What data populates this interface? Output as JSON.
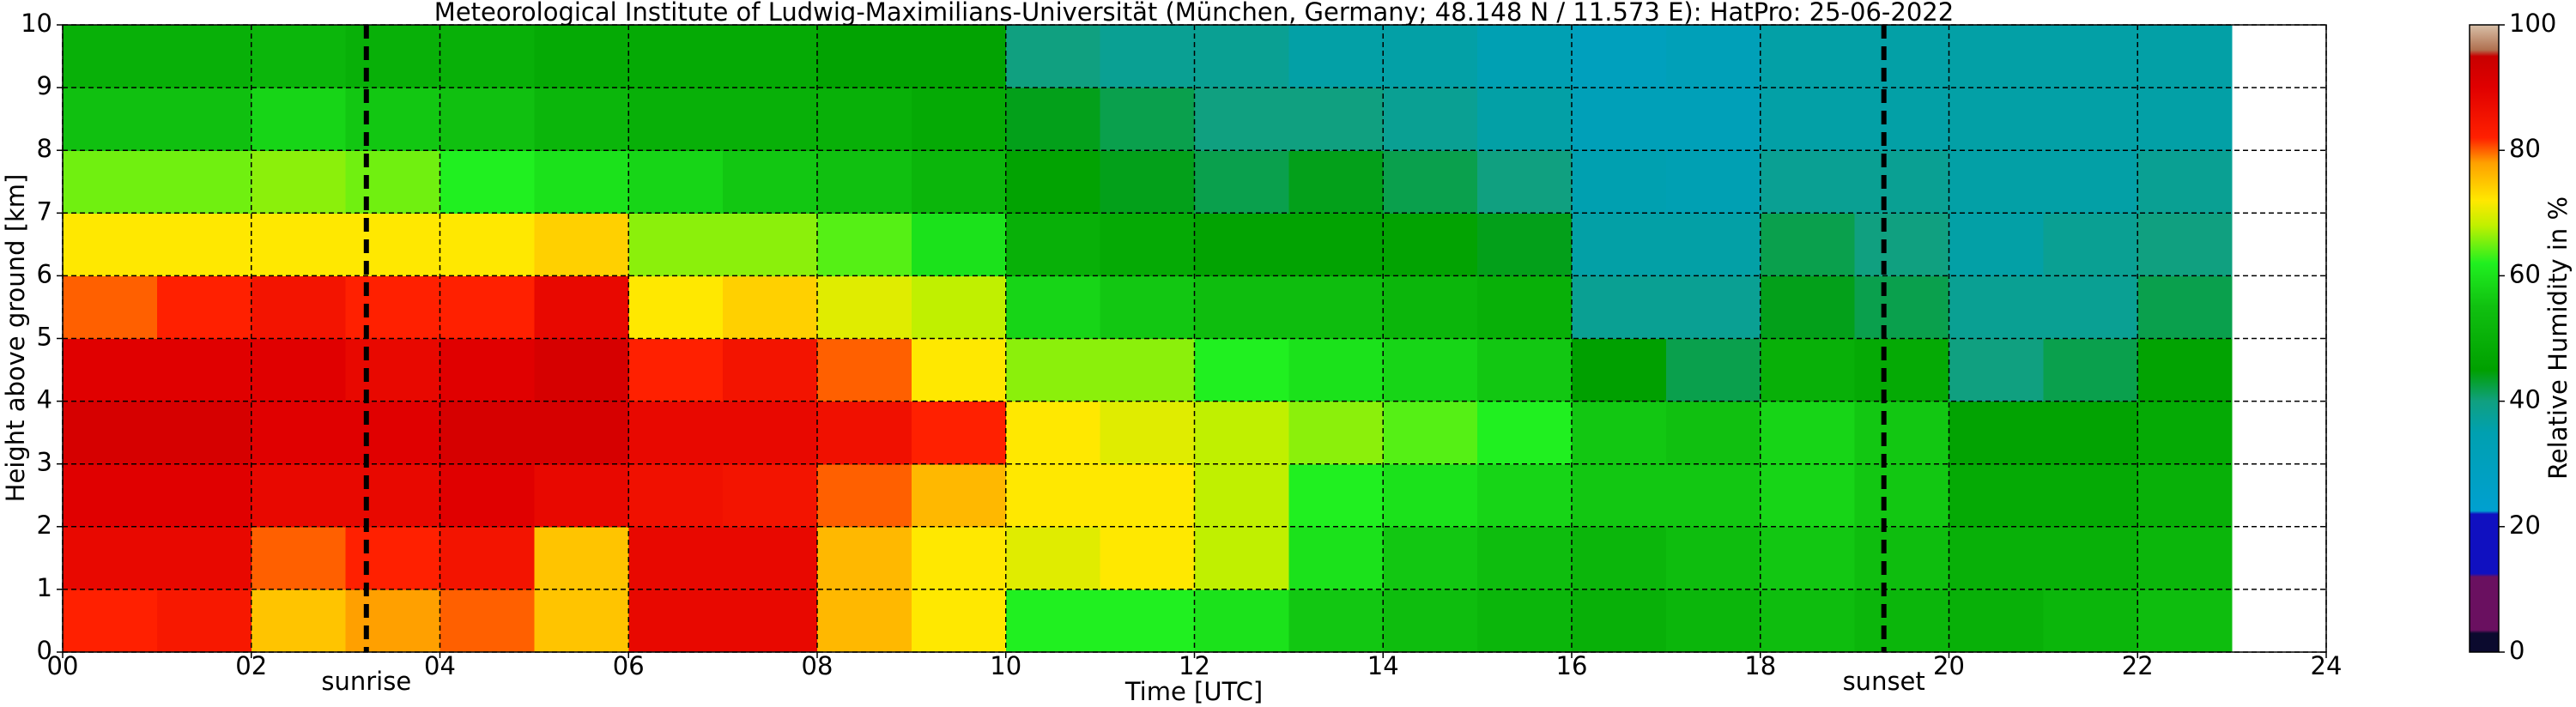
{
  "chart_data": {
    "type": "heatmap",
    "title": "Meteorological Institute of Ludwig-Maximilians-Universität (München, Germany; 48.148 N / 11.573 E):    HatPro: 25-06-2022",
    "xlabel": "Time [UTC]",
    "ylabel": "Height above ground [km]",
    "colorbar_label": "Relative Humidity in %",
    "xlim": [
      0,
      24
    ],
    "ylim": [
      0,
      10
    ],
    "xticks": [
      {
        "value": 0,
        "label": "00"
      },
      {
        "value": 2,
        "label": "02"
      },
      {
        "value": 4,
        "label": "04"
      },
      {
        "value": 6,
        "label": "06"
      },
      {
        "value": 8,
        "label": "08"
      },
      10,
      12,
      14,
      16,
      18,
      20,
      22,
      24
    ],
    "yticks": [
      0,
      1,
      2,
      3,
      4,
      5,
      6,
      7,
      8,
      9,
      10
    ],
    "grid": true,
    "x_edges": [
      0,
      1,
      2,
      3,
      4,
      5,
      6,
      7,
      8,
      9,
      10,
      11,
      12,
      13,
      14,
      15,
      16,
      17,
      18,
      19,
      20,
      21,
      22,
      23
    ],
    "y_edges": [
      0,
      1,
      2,
      3,
      4,
      5,
      6,
      7,
      8,
      9,
      10
    ],
    "z": [
      [
        82,
        84,
        75,
        78,
        80,
        75,
        88,
        88,
        76,
        72,
        62,
        62,
        60,
        56,
        54,
        52,
        50,
        52,
        54,
        52,
        50,
        52,
        54
      ],
      [
        88,
        88,
        80,
        82,
        85,
        75,
        88,
        88,
        76,
        72,
        70,
        72,
        68,
        60,
        56,
        54,
        52,
        54,
        56,
        54,
        50,
        50,
        52
      ],
      [
        90,
        90,
        88,
        88,
        90,
        88,
        86,
        85,
        80,
        76,
        72,
        72,
        68,
        62,
        60,
        58,
        56,
        56,
        58,
        56,
        48,
        48,
        50
      ],
      [
        92,
        92,
        90,
        90,
        92,
        92,
        88,
        88,
        86,
        82,
        72,
        70,
        68,
        66,
        64,
        62,
        56,
        55,
        58,
        56,
        46,
        46,
        48
      ],
      [
        90,
        90,
        90,
        88,
        90,
        92,
        82,
        85,
        80,
        72,
        66,
        66,
        62,
        60,
        58,
        56,
        45,
        42,
        50,
        48,
        40,
        42,
        46
      ],
      [
        80,
        82,
        85,
        82,
        82,
        88,
        72,
        74,
        70,
        68,
        58,
        56,
        54,
        54,
        52,
        50,
        38,
        38,
        44,
        42,
        38,
        38,
        42
      ],
      [
        72,
        72,
        72,
        72,
        72,
        74,
        66,
        66,
        64,
        60,
        50,
        48,
        46,
        46,
        46,
        44,
        36,
        36,
        42,
        40,
        36,
        38,
        40
      ],
      [
        65,
        65,
        66,
        65,
        62,
        60,
        58,
        56,
        55,
        52,
        46,
        44,
        42,
        44,
        42,
        40,
        35,
        34,
        38,
        38,
        36,
        36,
        38
      ],
      [
        55,
        55,
        58,
        56,
        55,
        52,
        50,
        50,
        50,
        48,
        44,
        42,
        40,
        40,
        38,
        36,
        32,
        32,
        36,
        36,
        36,
        36,
        36
      ],
      [
        50,
        50,
        52,
        50,
        50,
        48,
        48,
        48,
        46,
        46,
        40,
        38,
        38,
        36,
        36,
        34,
        30,
        32,
        36,
        36,
        36,
        36,
        36
      ]
    ],
    "colorscale": [
      [
        0,
        "#0b0a2e"
      ],
      [
        3,
        "#0b0a2e"
      ],
      [
        3.5,
        "#6a1060"
      ],
      [
        12,
        "#6a1060"
      ],
      [
        12.5,
        "#1010c0"
      ],
      [
        22,
        "#1010c0"
      ],
      [
        22.5,
        "#00a0d0"
      ],
      [
        35,
        "#00a0b0"
      ],
      [
        40,
        "#10a080"
      ],
      [
        45,
        "#00a000"
      ],
      [
        55,
        "#10c010"
      ],
      [
        62,
        "#20f020"
      ],
      [
        68,
        "#c0f000"
      ],
      [
        72,
        "#ffe800"
      ],
      [
        78,
        "#ffa000"
      ],
      [
        82,
        "#ff2000"
      ],
      [
        90,
        "#e00000"
      ],
      [
        95,
        "#c80000"
      ],
      [
        96,
        "#b07050"
      ],
      [
        100,
        "#d8c0a8"
      ]
    ],
    "cbar_lim": [
      0,
      100
    ],
    "cbar_ticks": [
      0,
      20,
      40,
      60,
      80,
      100
    ],
    "markers": [
      {
        "label": "sunrise",
        "x": 3.22
      },
      {
        "label": "sunset",
        "x": 19.31
      }
    ]
  }
}
